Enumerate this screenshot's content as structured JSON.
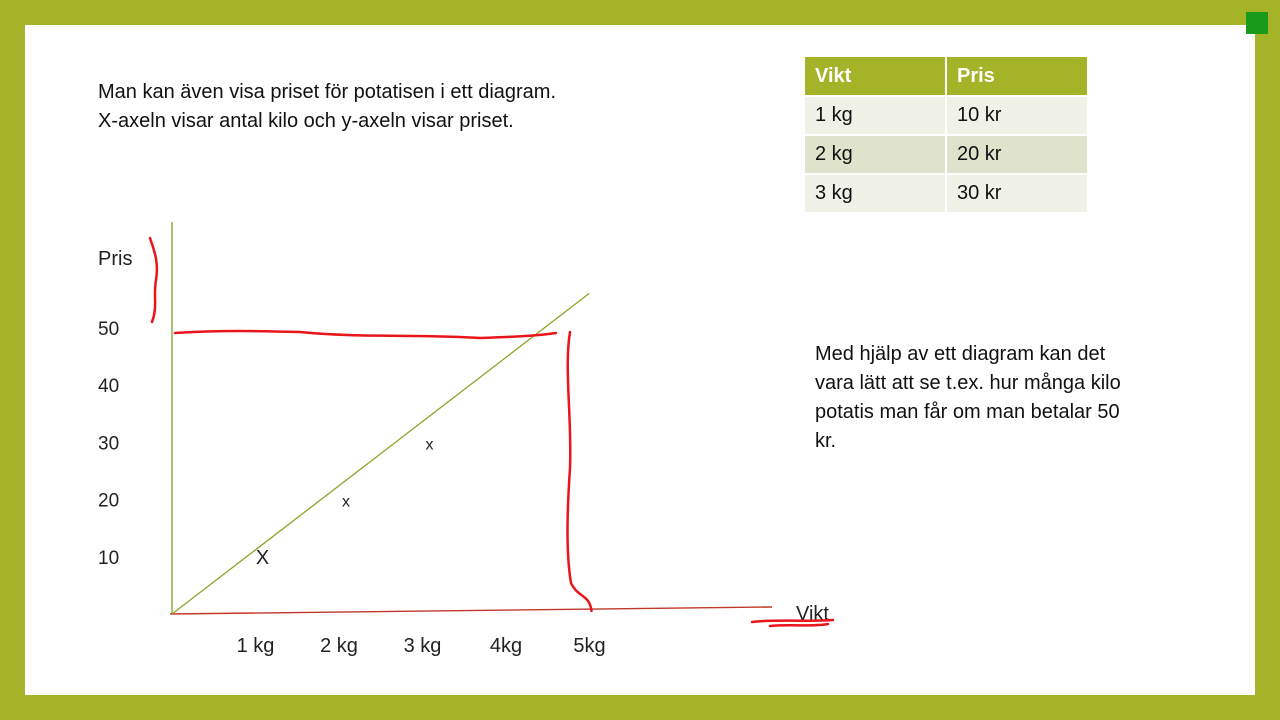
{
  "intro_lines": [
    "Man kan även visa priset för potatisen i ett diagram.",
    "X-axeln visar antal kilo och y-axeln visar priset."
  ],
  "table": {
    "headers": [
      "Vikt",
      "Pris"
    ],
    "rows": [
      [
        "1 kg",
        "10 kr"
      ],
      [
        "2 kg",
        "20 kr"
      ],
      [
        "3 kg",
        "30 kr"
      ]
    ]
  },
  "side_text": "Med hjälp av ett diagram kan det vara lätt att se t.ex. hur många kilo potatis man får om man betalar 50 kr.",
  "chart_data": {
    "type": "line",
    "xlabel": "Vikt",
    "ylabel": "Pris",
    "x_ticks": [
      "1 kg",
      "2 kg",
      "3 kg",
      "4kg",
      "5kg"
    ],
    "y_ticks": [
      "10",
      "20",
      "30",
      "40",
      "50"
    ],
    "xlim": [
      0,
      5
    ],
    "ylim": [
      0,
      50
    ],
    "points": [
      {
        "x": 1,
        "y": 10,
        "marker": "X"
      },
      {
        "x": 2,
        "y": 20,
        "marker": "x"
      },
      {
        "x": 3,
        "y": 30,
        "marker": "x"
      }
    ],
    "line": {
      "x": [
        0,
        5.5
      ],
      "y": [
        0,
        55
      ]
    },
    "annotation": {
      "y": 50,
      "x": 5
    },
    "colors": {
      "axis_y": "#8aa52a",
      "axis_x": "#c0392b",
      "line": "#8aa52a",
      "annotation": "#e8151b",
      "accent": "#a4b327"
    }
  }
}
